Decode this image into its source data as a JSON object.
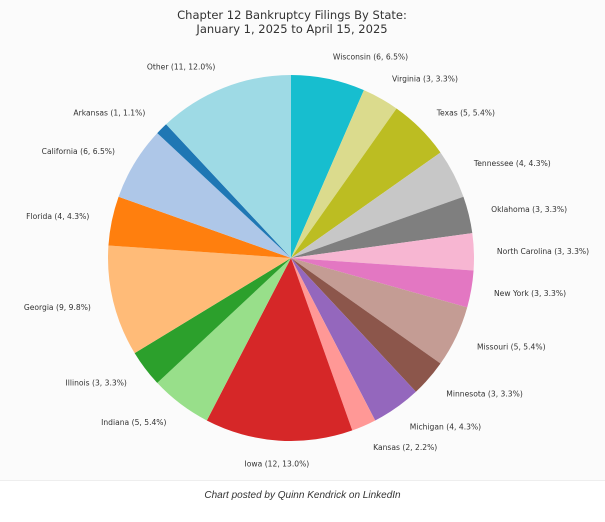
{
  "chart_data": {
    "type": "pie",
    "title": [
      "Chapter 12 Bankruptcy Filings By State:",
      "January 1, 2025 to April 15, 2025"
    ],
    "slices": [
      {
        "label": "Wisconsin (6, 6.5%)",
        "value": 6,
        "percent": 6.5,
        "color": "#17becf"
      },
      {
        "label": "Virginia (3, 3.3%)",
        "value": 3,
        "percent": 3.3,
        "color": "#dbdb8d"
      },
      {
        "label": "Texas (5, 5.4%)",
        "value": 5,
        "percent": 5.4,
        "color": "#bcbd22"
      },
      {
        "label": "Tennessee (4, 4.3%)",
        "value": 4,
        "percent": 4.3,
        "color": "#c7c7c7"
      },
      {
        "label": "Oklahoma (3, 3.3%)",
        "value": 3,
        "percent": 3.3,
        "color": "#7f7f7f"
      },
      {
        "label": "North Carolina (3, 3.3%)",
        "value": 3,
        "percent": 3.3,
        "color": "#f7b6d2"
      },
      {
        "label": "New York (3, 3.3%)",
        "value": 3,
        "percent": 3.3,
        "color": "#e377c2"
      },
      {
        "label": "Missouri (5, 5.4%)",
        "value": 5,
        "percent": 5.4,
        "color": "#c49c94"
      },
      {
        "label": "Minnesota (3, 3.3%)",
        "value": 3,
        "percent": 3.3,
        "color": "#8c564b"
      },
      {
        "label": "Michigan (4, 4.3%)",
        "value": 4,
        "percent": 4.3,
        "color": "#9467bd"
      },
      {
        "label": "Kansas (2, 2.2%)",
        "value": 2,
        "percent": 2.2,
        "color": "#ff9896"
      },
      {
        "label": "Iowa (12, 13.0%)",
        "value": 12,
        "percent": 13.0,
        "color": "#d62728"
      },
      {
        "label": "Indiana (5, 5.4%)",
        "value": 5,
        "percent": 5.4,
        "color": "#98df8a"
      },
      {
        "label": "Illinois (3, 3.3%)",
        "value": 3,
        "percent": 3.3,
        "color": "#2ca02c"
      },
      {
        "label": "Georgia (9, 9.8%)",
        "value": 9,
        "percent": 9.8,
        "color": "#ffbb78"
      },
      {
        "label": "Florida (4, 4.3%)",
        "value": 4,
        "percent": 4.3,
        "color": "#ff7f0e"
      },
      {
        "label": "California (6, 6.5%)",
        "value": 6,
        "percent": 6.5,
        "color": "#aec7e8"
      },
      {
        "label": "Arkansas (1, 1.1%)",
        "value": 1,
        "percent": 1.1,
        "color": "#1f77b4"
      },
      {
        "label": "Other (11, 12.0%)",
        "value": 11,
        "percent": 12.0,
        "color": "#9edae5"
      }
    ],
    "start": "top",
    "direction": "clockwise"
  },
  "caption": "Chart posted by Quinn Kendrick on LinkedIn"
}
